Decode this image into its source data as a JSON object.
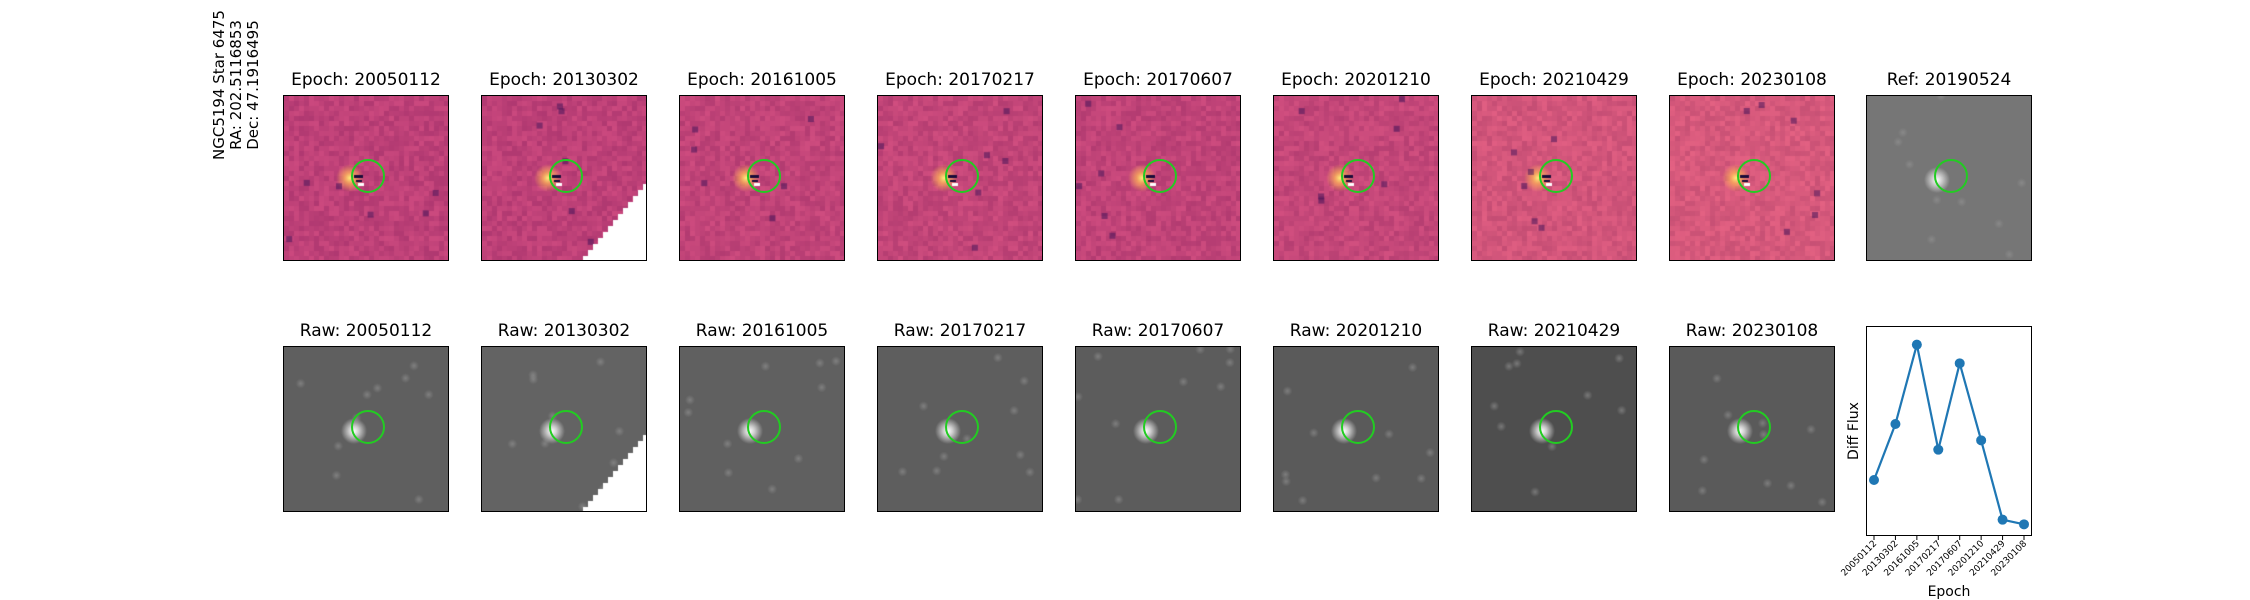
{
  "side_label": [
    "NGC5194 Star 6475",
    "RA: 202.5116853",
    "Dec: 47.1916495"
  ],
  "top_row": [
    {
      "title": "Epoch: 20050112",
      "shade": 0.0,
      "masked": false
    },
    {
      "title": "Epoch: 20130302",
      "shade": 0.0,
      "masked": true
    },
    {
      "title": "Epoch: 20161005",
      "shade": 0.05,
      "masked": false
    },
    {
      "title": "Epoch: 20170217",
      "shade": 0.08,
      "masked": false
    },
    {
      "title": "Epoch: 20170607",
      "shade": 0.05,
      "masked": false
    },
    {
      "title": "Epoch: 20201210",
      "shade": 0.1,
      "masked": false
    },
    {
      "title": "Epoch: 20210429",
      "shade": 0.35,
      "masked": false
    },
    {
      "title": "Epoch: 20230108",
      "shade": 0.4,
      "masked": false
    },
    {
      "title": "Ref: 20190524",
      "shade": 0,
      "masked": false,
      "gray": true
    }
  ],
  "bottom_row": [
    {
      "title": "Raw: 20050112",
      "masked": false
    },
    {
      "title": "Raw: 20130302",
      "masked": true
    },
    {
      "title": "Raw: 20161005",
      "masked": false
    },
    {
      "title": "Raw: 20170217",
      "masked": false
    },
    {
      "title": "Raw: 20170607",
      "masked": false
    },
    {
      "title": "Raw: 20201210",
      "masked": false
    },
    {
      "title": "Raw: 20210429",
      "masked": false
    },
    {
      "title": "Raw: 20230108",
      "masked": false
    }
  ],
  "colors": {
    "circle": "#22cc22",
    "line": "#1f77b4",
    "diff_base": "#c0457a",
    "raw_gray": "#5a5a5a"
  },
  "chart_data": {
    "type": "line",
    "title": "",
    "xlabel": "Epoch",
    "ylabel": "Diff Flux",
    "categories": [
      "20050112",
      "20130302",
      "20161005",
      "20170217",
      "20170607",
      "20201210",
      "20210429",
      "20230108"
    ],
    "values": [
      0.24,
      0.48,
      0.82,
      0.37,
      0.74,
      0.41,
      0.07,
      0.05
    ],
    "ylim": [
      0,
      0.9
    ],
    "yticks_shown": false,
    "grid": false
  }
}
